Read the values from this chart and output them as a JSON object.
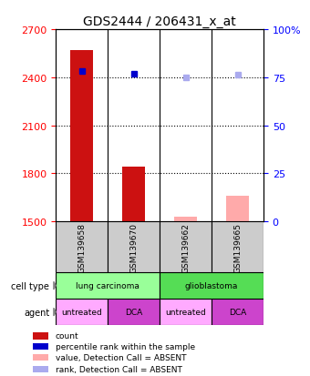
{
  "title": "GDS2444 / 206431_x_at",
  "samples": [
    "GSM139658",
    "GSM139670",
    "GSM139662",
    "GSM139665"
  ],
  "bar_values": [
    2570,
    1840,
    null,
    null
  ],
  "bar_values_absent": [
    null,
    null,
    1530,
    1660
  ],
  "rank_values": [
    2440,
    2420,
    2400,
    2415
  ],
  "rank_absent": [
    false,
    false,
    true,
    true
  ],
  "ylim_left": [
    1500,
    2700
  ],
  "ylim_right": [
    0,
    100
  ],
  "yticks_left": [
    1500,
    1800,
    2100,
    2400,
    2700
  ],
  "yticks_right": [
    0,
    25,
    50,
    75,
    100
  ],
  "ytick_labels_right": [
    "0",
    "25",
    "50",
    "75",
    "100%"
  ],
  "grid_lines": [
    1800,
    2100,
    2400
  ],
  "cell_types": [
    {
      "label": "lung carcinoma",
      "span": [
        0,
        2
      ],
      "color": "#99ff99"
    },
    {
      "label": "glioblastoma",
      "span": [
        2,
        4
      ],
      "color": "#55dd55"
    }
  ],
  "agents": [
    {
      "label": "untreated",
      "span": [
        0,
        1
      ],
      "color": "#ffaaff"
    },
    {
      "label": "DCA",
      "span": [
        1,
        2
      ],
      "color": "#cc44cc"
    },
    {
      "label": "untreated",
      "span": [
        2,
        3
      ],
      "color": "#ffaaff"
    },
    {
      "label": "DCA",
      "span": [
        3,
        4
      ],
      "color": "#cc44cc"
    }
  ],
  "legend_items": [
    {
      "label": "count",
      "color": "#cc1111"
    },
    {
      "label": "percentile rank within the sample",
      "color": "#0000cc"
    },
    {
      "label": "value, Detection Call = ABSENT",
      "color": "#ffaaaa"
    },
    {
      "label": "rank, Detection Call = ABSENT",
      "color": "#aaaaee"
    }
  ],
  "bar_color": "#cc1111",
  "bar_absent_color": "#ffaaaa",
  "rank_color": "#0000cc",
  "rank_absent_color": "#aaaaee",
  "sample_box_color": "#cccccc",
  "bar_width": 0.45,
  "label_fontsize": 7,
  "title_fontsize": 10,
  "tick_fontsize": 8,
  "sample_fontsize": 6.5,
  "row_fontsize": 6.5,
  "legend_fontsize": 6.5
}
